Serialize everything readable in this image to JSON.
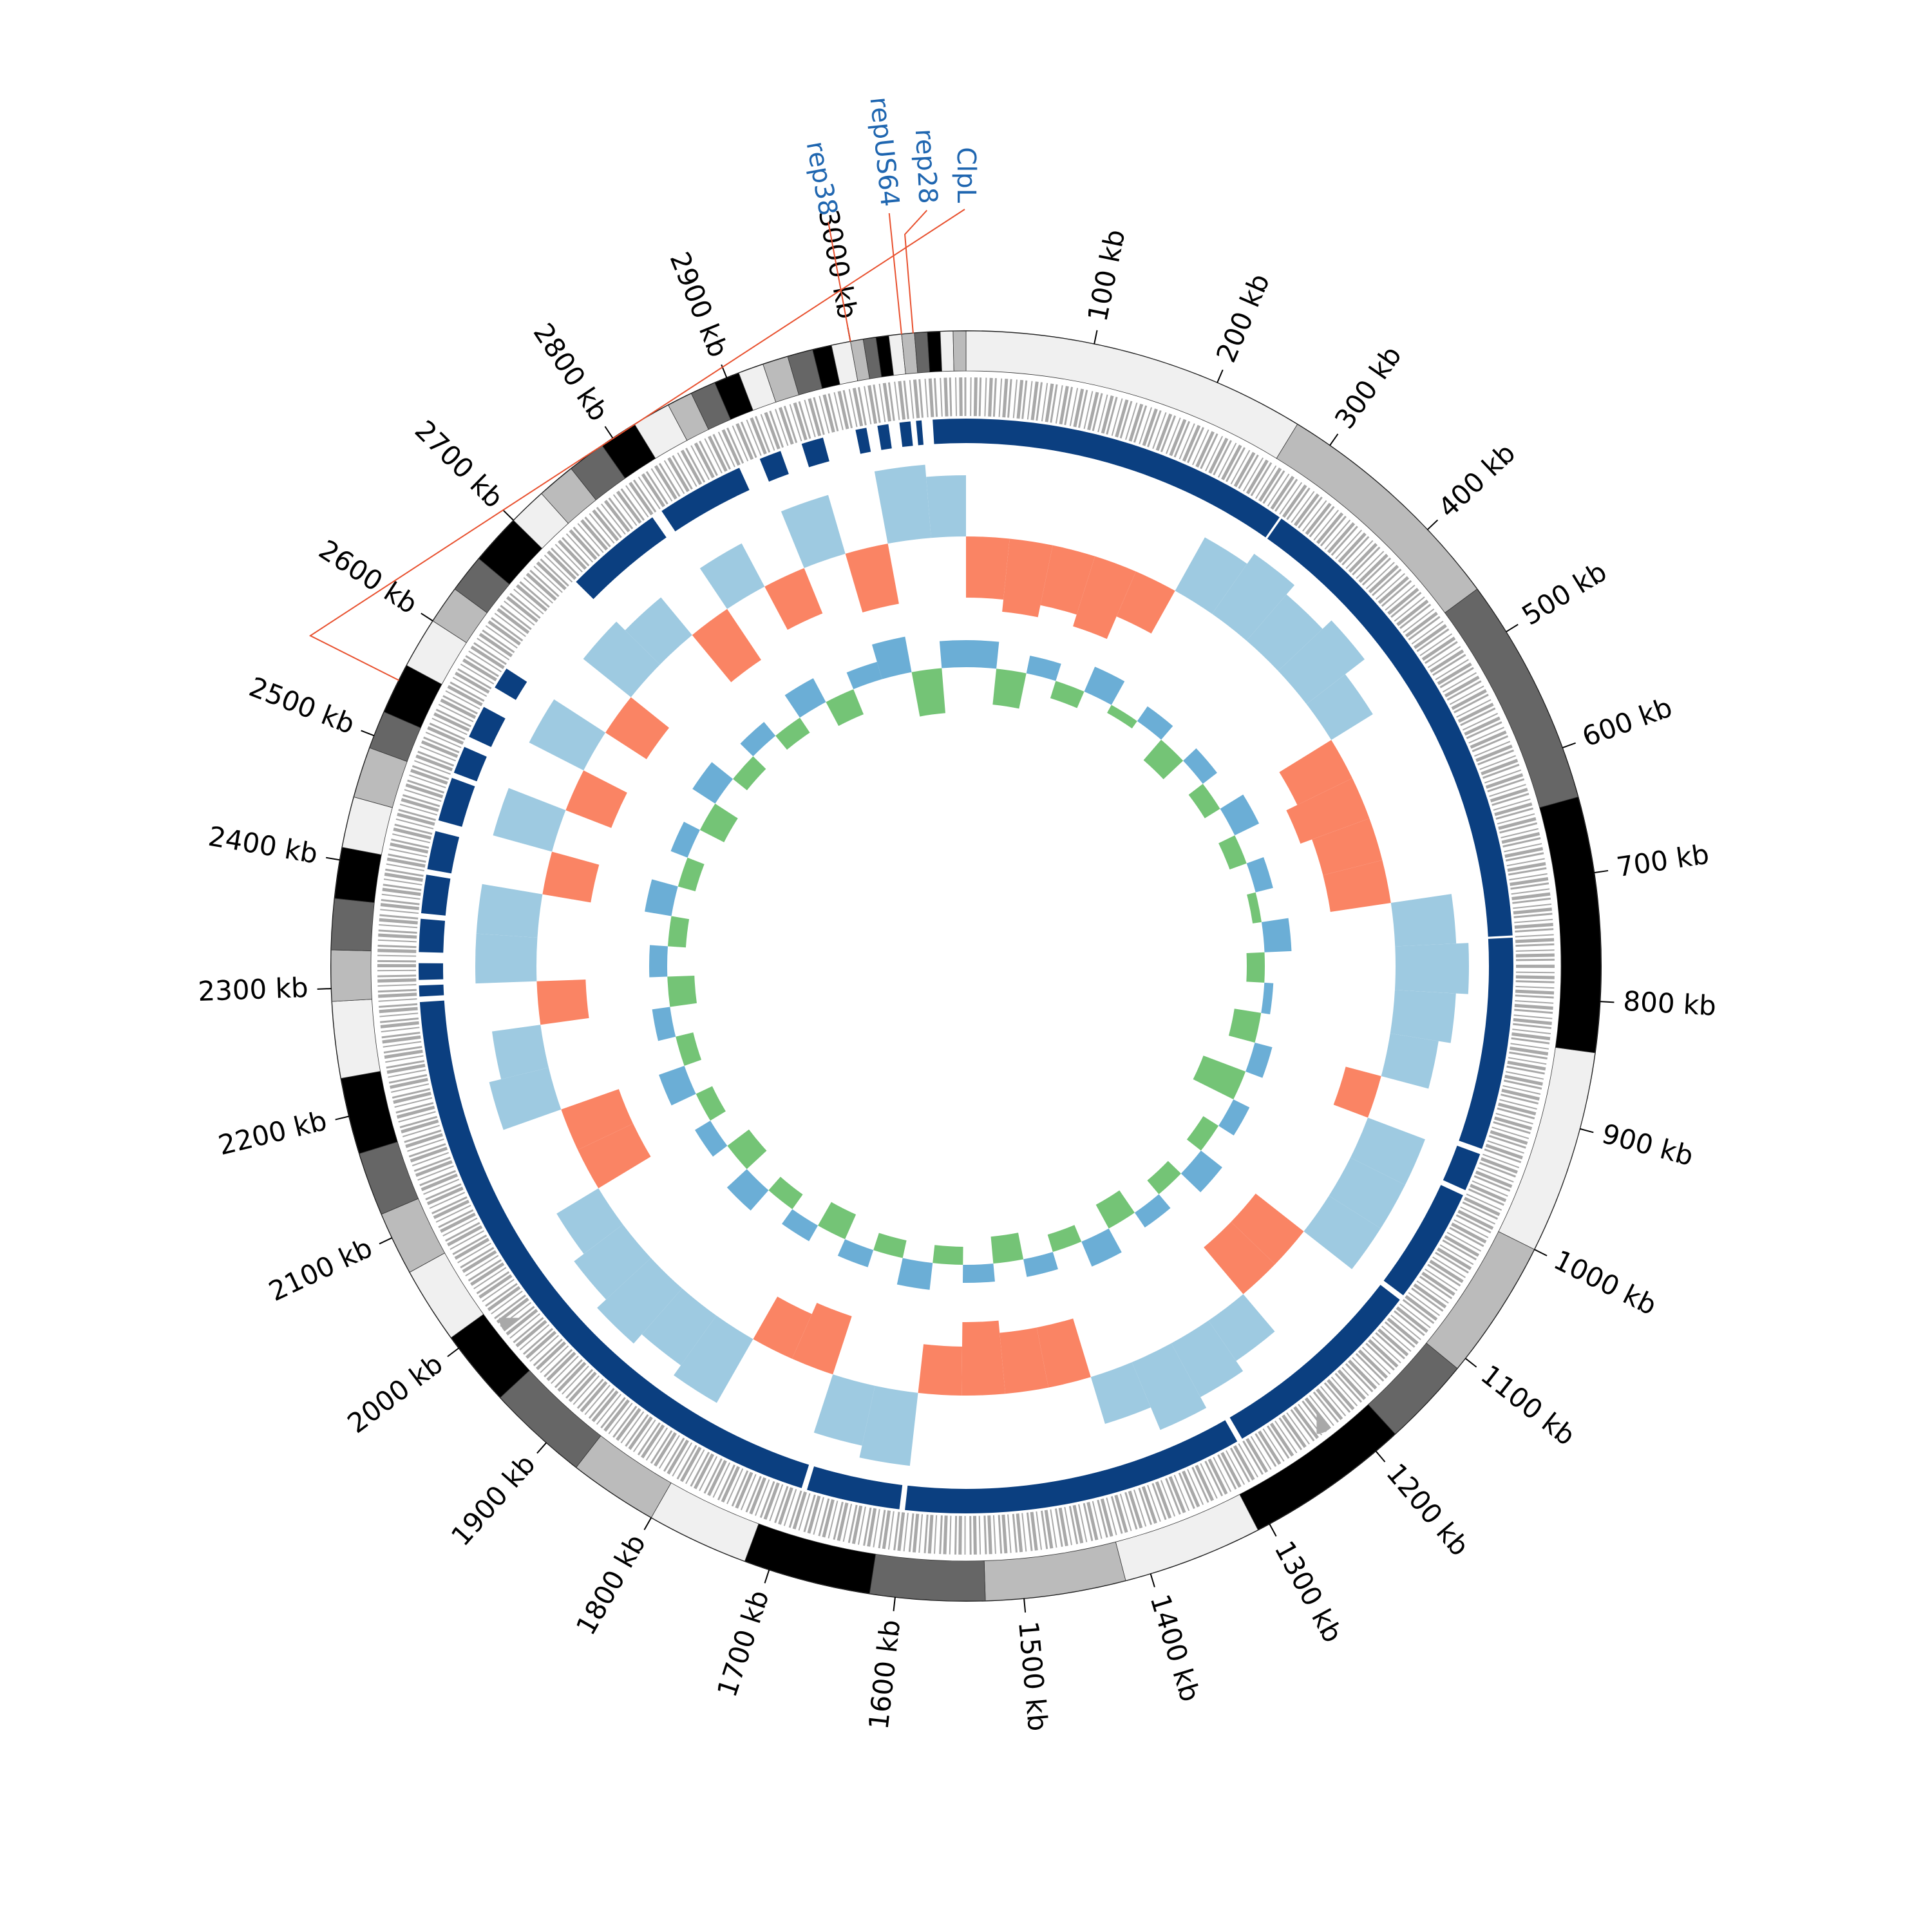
{
  "chart_data": {
    "type": "circos",
    "xlim": [
      0,
      3090
    ],
    "xticks": [
      {
        "value": 100,
        "label": "100 kb"
      },
      {
        "value": 200,
        "label": "200 kb"
      },
      {
        "value": 300,
        "label": "300 kb"
      },
      {
        "value": 400,
        "label": "400 kb"
      },
      {
        "value": 500,
        "label": "500 kb"
      },
      {
        "value": 600,
        "label": "600 kb"
      },
      {
        "value": 700,
        "label": "700 kb"
      },
      {
        "value": 800,
        "label": "800 kb"
      },
      {
        "value": 900,
        "label": "900 kb"
      },
      {
        "value": 1000,
        "label": "1000 kb"
      },
      {
        "value": 1100,
        "label": "1100 kb"
      },
      {
        "value": 1200,
        "label": "1200 kb"
      },
      {
        "value": 1300,
        "label": "1300 kb"
      },
      {
        "value": 1400,
        "label": "1400 kb"
      },
      {
        "value": 1500,
        "label": "1500 kb"
      },
      {
        "value": 1600,
        "label": "1600 kb"
      },
      {
        "value": 1700,
        "label": "1700 kb"
      },
      {
        "value": 1800,
        "label": "1800 kb"
      },
      {
        "value": 1900,
        "label": "1900 kb"
      },
      {
        "value": 2000,
        "label": "2000 kb"
      },
      {
        "value": 2100,
        "label": "2100 kb"
      },
      {
        "value": 2200,
        "label": "2200 kb"
      },
      {
        "value": 2300,
        "label": "2300 kb"
      },
      {
        "value": 2400,
        "label": "2400 kb"
      },
      {
        "value": 2500,
        "label": "2500 kb"
      },
      {
        "value": 2600,
        "label": "2600 kb"
      },
      {
        "value": 2700,
        "label": "2700 kb"
      },
      {
        "value": 2800,
        "label": "2800 kb"
      },
      {
        "value": 2900,
        "label": "2900 kb"
      },
      {
        "value": 3000,
        "label": "3000 kb"
      }
    ],
    "contigs": {
      "starts": [
        0,
        270,
        460,
        640,
        840,
        1000,
        1110,
        1180,
        1310,
        1420,
        1530,
        1620,
        1720,
        1800,
        1870,
        1950,
        2010,
        2070,
        2120,
        2170,
        2230,
        2290,
        2330,
        2370,
        2410,
        2450,
        2490,
        2520,
        2560,
        2600,
        2630,
        2660,
        2700,
        2730,
        2760,
        2790,
        2820,
        2850,
        2870,
        2890,
        2910,
        2930,
        2950,
        2970,
        2985,
        3000,
        3010,
        3020,
        3030,
        3040,
        3050,
        3060,
        3070,
        3080
      ],
      "ends": [
        270,
        460,
        640,
        840,
        1000,
        1110,
        1180,
        1310,
        1420,
        1530,
        1620,
        1720,
        1800,
        1870,
        1950,
        2010,
        2070,
        2120,
        2170,
        2230,
        2290,
        2330,
        2370,
        2410,
        2450,
        2490,
        2520,
        2560,
        2600,
        2630,
        2660,
        2700,
        2730,
        2760,
        2790,
        2820,
        2850,
        2870,
        2890,
        2910,
        2930,
        2950,
        2970,
        2985,
        3000,
        3010,
        3020,
        3030,
        3040,
        3050,
        3060,
        3070,
        3080,
        3090
      ],
      "colors": [
        "#f0f0f0",
        "#bbbbbb",
        "#666666",
        "#000000"
      ]
    },
    "annotations": {
      "names": [
        "rep38",
        "repUS64",
        "rep28",
        "ClpL"
      ],
      "positions": [
        3000,
        3040,
        3049,
        2547
      ],
      "color": "#1f66b0",
      "line_color": "#e8502e"
    },
    "hits": {
      "starts": [
        0,
        302,
        747,
        945,
        985,
        1095,
        1290,
        1605,
        1695,
        2290,
        2305,
        2330,
        2365,
        2405,
        2450,
        2495,
        2530,
        2580,
        2700,
        2800,
        2900,
        2940,
        2990,
        3010,
        3030,
        3045,
        3060
      ],
      "ends": [
        300,
        745,
        940,
        980,
        1090,
        1285,
        1600,
        1690,
        2285,
        2300,
        2320,
        2360,
        2400,
        2440,
        2490,
        2520,
        2560,
        2600,
        2790,
        2880,
        2920,
        2960,
        3000,
        3020,
        3040,
        3050,
        3090
      ],
      "color": "#0b3f80"
    },
    "gc_skew": {
      "x": [
        0,
        50,
        100,
        150,
        200,
        250,
        300,
        350,
        400,
        450,
        500,
        550,
        600,
        650,
        700,
        750,
        800,
        850,
        900,
        950,
        1000,
        1050,
        1100,
        1150,
        1200,
        1250,
        1300,
        1350,
        1400,
        1450,
        1500,
        1550,
        1600,
        1650,
        1700,
        1750,
        1800,
        1850,
        1900,
        1950,
        2000,
        2050,
        2100,
        2150,
        2200,
        2250,
        2300,
        2350,
        2400,
        2450,
        2500,
        2550,
        2600,
        2650,
        2700,
        2750,
        2800,
        2850,
        2900,
        2950,
        3000,
        3050
      ],
      "values": [
        0.05,
        0.06,
        0.05,
        0.06,
        0.04,
        -0.05,
        -0.06,
        -0.05,
        -0.06,
        -0.04,
        0.05,
        0.06,
        0.05,
        0.05,
        -0.05,
        -0.06,
        -0.05,
        -0.04,
        0.03,
        -0.05,
        -0.05,
        -0.05,
        0.05,
        0.05,
        -0.04,
        -0.05,
        -0.06,
        -0.04,
        0.05,
        0.05,
        0.06,
        0.04,
        -0.06,
        -0.05,
        0.05,
        0.04,
        -0.06,
        -0.05,
        -0.06,
        -0.05,
        -0.04,
        0.05,
        0.05,
        -0.05,
        -0.04,
        0.04,
        -0.05,
        -0.05,
        0.04,
        -0.05,
        0.04,
        -0.05,
        0.04,
        -0.05,
        -0.04,
        0.05,
        -0.04,
        0.04,
        -0.05,
        0.05,
        -0.06,
        -0.05
      ],
      "ylim": [
        -0.1,
        0.1
      ],
      "colors": [
        "#fa8464",
        "#9ecae1"
      ]
    },
    "gc_content": {
      "x": [
        0,
        50,
        100,
        150,
        200,
        250,
        300,
        350,
        400,
        450,
        500,
        550,
        600,
        650,
        700,
        750,
        800,
        850,
        900,
        950,
        1000,
        1050,
        1100,
        1150,
        1200,
        1250,
        1300,
        1350,
        1400,
        1450,
        1500,
        1550,
        1600,
        1650,
        1700,
        1750,
        1800,
        1850,
        1900,
        1950,
        2000,
        2050,
        2100,
        2150,
        2200,
        2250,
        2300,
        2350,
        2400,
        2450,
        2500,
        2550,
        2600,
        2650,
        2700,
        2750,
        2800,
        2850,
        2900,
        2950,
        3000,
        3050
      ],
      "values": [
        0.03,
        -0.04,
        0.02,
        -0.02,
        0.03,
        -0.01,
        0.02,
        -0.03,
        0.02,
        -0.02,
        0.03,
        -0.02,
        0.02,
        -0.01,
        0.03,
        -0.02,
        0.01,
        -0.03,
        0.02,
        -0.05,
        0.02,
        -0.02,
        0.03,
        -0.02,
        0.02,
        -0.03,
        0.03,
        -0.02,
        0.02,
        -0.03,
        0.02,
        -0.02,
        0.03,
        -0.02,
        0.02,
        -0.03,
        0.02,
        -0.02,
        0.03,
        -0.03,
        0.02,
        -0.02,
        0.03,
        -0.02,
        0.02,
        -0.03,
        0.02,
        -0.02,
        0.03,
        -0.02,
        0.02,
        -0.03,
        0.03,
        -0.02,
        0.02,
        -0.02,
        0.03,
        -0.03,
        0.02,
        0.04,
        -0.05,
        0.03
      ],
      "ylim": [
        -0.1,
        0.1
      ],
      "colors": [
        "#6baed6",
        "#74c476"
      ]
    }
  }
}
